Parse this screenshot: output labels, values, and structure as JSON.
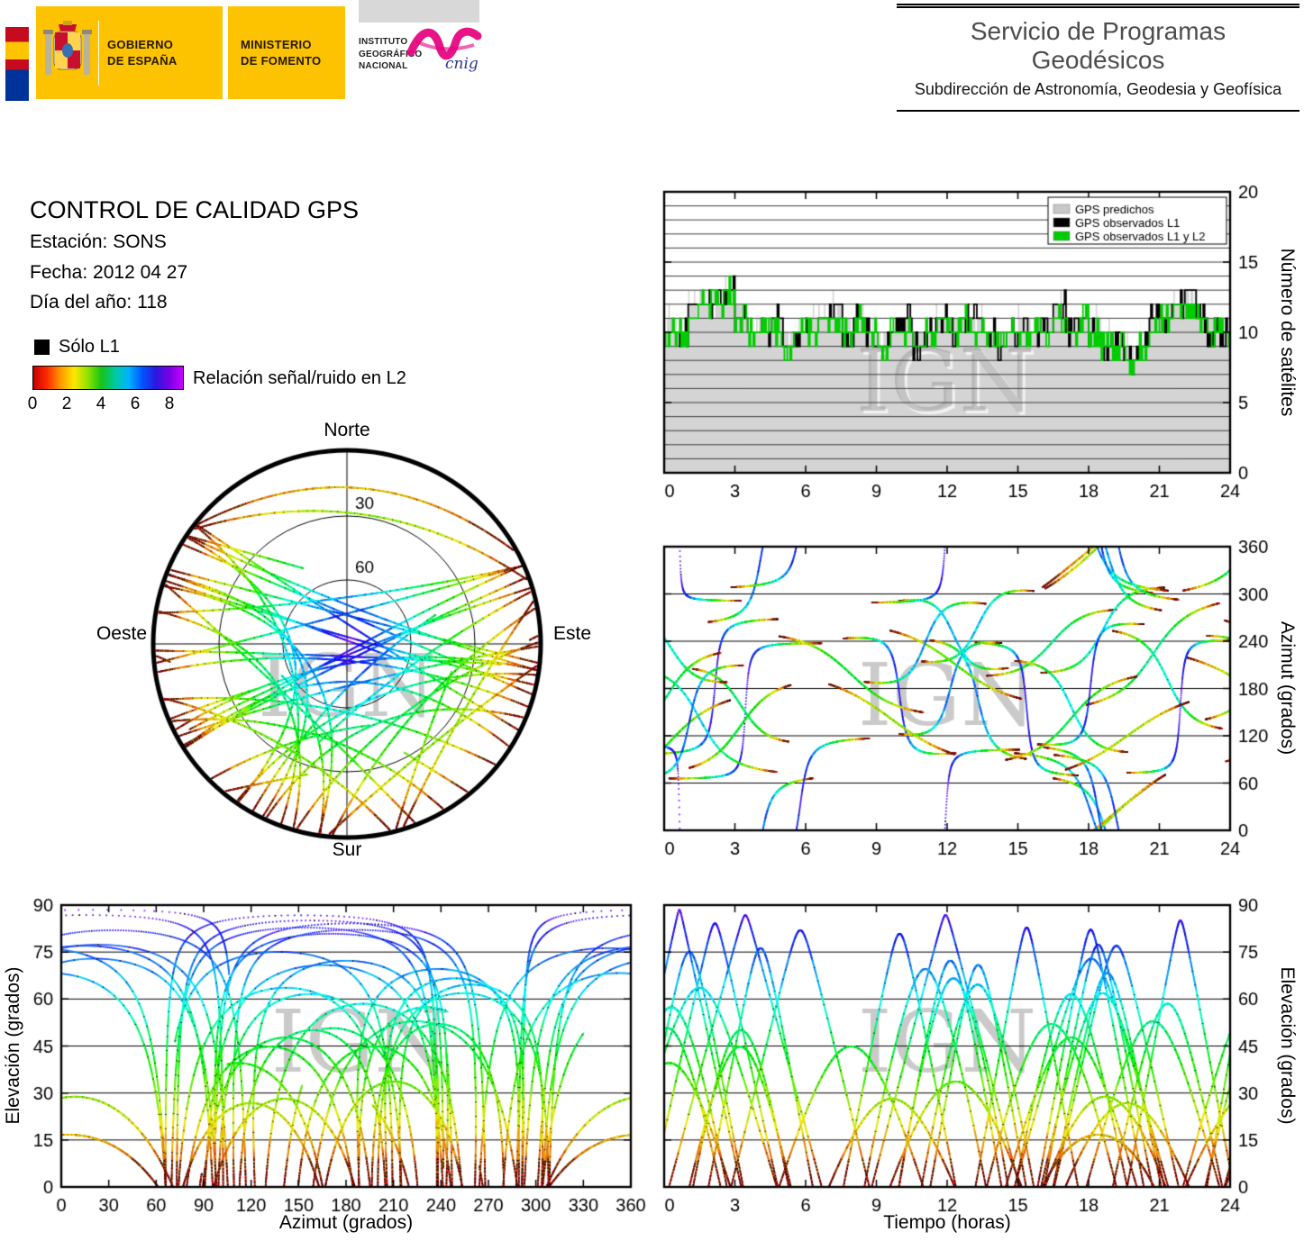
{
  "watermark": "IGN",
  "header": {
    "gobierno": [
      "GOBIERNO",
      "DE ESPAÑA"
    ],
    "ministerio": [
      "MINISTERIO",
      "DE FOMENTO"
    ],
    "instituto": [
      "INSTITUTO",
      "GEOGRÁFICO",
      "NACIONAL"
    ],
    "cnig": "cnig",
    "service_title": "Servicio de Programas Geodésicos",
    "service_subtitle": "Subdirección de Astronomía, Geodesia y Geofísica"
  },
  "info": {
    "title": "CONTROL DE CALIDAD GPS",
    "station": "Estación: SONS",
    "date": "Fecha: 2012 04 27",
    "day_of_year": "Día del año: 118"
  },
  "legend": {
    "solo_l1_label": "Sólo L1",
    "snr_label": "Relación señal/ruido en L2",
    "ticks": [
      "0",
      "2",
      "4",
      "6",
      "8"
    ],
    "gradient": [
      "#c40000",
      "#ff2a00",
      "#ff9900",
      "#ffe600",
      "#8fe300",
      "#17c317",
      "#00c9a0",
      "#00b4ff",
      "#0055ff",
      "#2a18e0",
      "#7a00e6",
      "#c800ff"
    ]
  },
  "chart_data": [
    {
      "id": "skyplot",
      "type": "scatter",
      "projection": "polar-sky",
      "labels": {
        "north": "Norte",
        "east": "Este",
        "south": "Sur",
        "west": "Oeste"
      },
      "elevation_rings": [
        30,
        60
      ]
    },
    {
      "id": "numero-de-satelites",
      "type": "step",
      "ylabel": "Número de satélites",
      "xlim": [
        0,
        24
      ],
      "ylim": [
        0,
        20
      ],
      "xticks": [
        0,
        3,
        6,
        9,
        12,
        15,
        18,
        21,
        24
      ],
      "yticks": [
        0,
        5,
        10,
        15,
        20
      ],
      "x_step_hours": 0.5,
      "legend": [
        {
          "label": "GPS predichos",
          "color": "#c8c8c8"
        },
        {
          "label": "GPS observados L1",
          "color": "#000000"
        },
        {
          "label": "GPS observados L1 y L2",
          "color": "#00cc00"
        }
      ],
      "predicted": [
        11,
        10,
        12,
        13,
        12,
        13,
        12,
        10,
        11,
        11,
        10,
        10,
        11,
        11,
        12,
        11,
        11,
        10,
        10,
        10,
        11,
        10,
        10,
        11,
        11,
        11,
        11,
        10,
        10,
        10,
        11,
        10,
        11,
        12,
        11,
        11,
        11,
        10,
        9,
        9,
        9,
        11,
        12,
        12,
        13,
        11,
        11,
        10
      ],
      "observed_l1": [
        10,
        10,
        12,
        12,
        12,
        13,
        11,
        10,
        10,
        11,
        9,
        10,
        10,
        11,
        12,
        10,
        11,
        10,
        9,
        10,
        11,
        9,
        10,
        11,
        10,
        11,
        11,
        10,
        9,
        10,
        10,
        10,
        10,
        12,
        10,
        11,
        10,
        9,
        9,
        8,
        9,
        11,
        11,
        12,
        13,
        11,
        10,
        10
      ],
      "observed_l1_l2": [
        10,
        10,
        11,
        12,
        12,
        13,
        11,
        10,
        10,
        10,
        9,
        10,
        10,
        11,
        11,
        10,
        11,
        10,
        9,
        10,
        10,
        9,
        10,
        11,
        10,
        11,
        10,
        10,
        9,
        10,
        10,
        10,
        10,
        11,
        10,
        11,
        10,
        9,
        9,
        8,
        9,
        10,
        11,
        12,
        12,
        11,
        10,
        10
      ]
    },
    {
      "id": "azimut-vs-tiempo",
      "type": "scatter",
      "ylabel": "Azimut (grados)",
      "xlim": [
        0,
        24
      ],
      "ylim": [
        0,
        360
      ],
      "xticks": [
        0,
        3,
        6,
        9,
        12,
        15,
        18,
        21,
        24
      ],
      "yticks": [
        0,
        60,
        120,
        180,
        240,
        300,
        360
      ]
    },
    {
      "id": "elevacion-vs-azimut",
      "type": "scatter",
      "xlabel": "Azimut (grados)",
      "ylabel": "Elevación (grados)",
      "xlim": [
        0,
        360
      ],
      "ylim": [
        0,
        90
      ],
      "xticks": [
        0,
        30,
        60,
        90,
        120,
        150,
        180,
        210,
        240,
        270,
        300,
        330,
        360
      ],
      "yticks": [
        0,
        15,
        30,
        45,
        60,
        75,
        90
      ]
    },
    {
      "id": "elevacion-vs-tiempo",
      "type": "scatter",
      "xlabel": "Tiempo (horas)",
      "ylabel": "Elevación (grados)",
      "xlim": [
        0,
        24
      ],
      "ylim": [
        0,
        90
      ],
      "xticks": [
        0,
        3,
        6,
        9,
        12,
        15,
        18,
        21,
        24
      ],
      "yticks": [
        0,
        15,
        30,
        45,
        60,
        75,
        90
      ]
    }
  ]
}
